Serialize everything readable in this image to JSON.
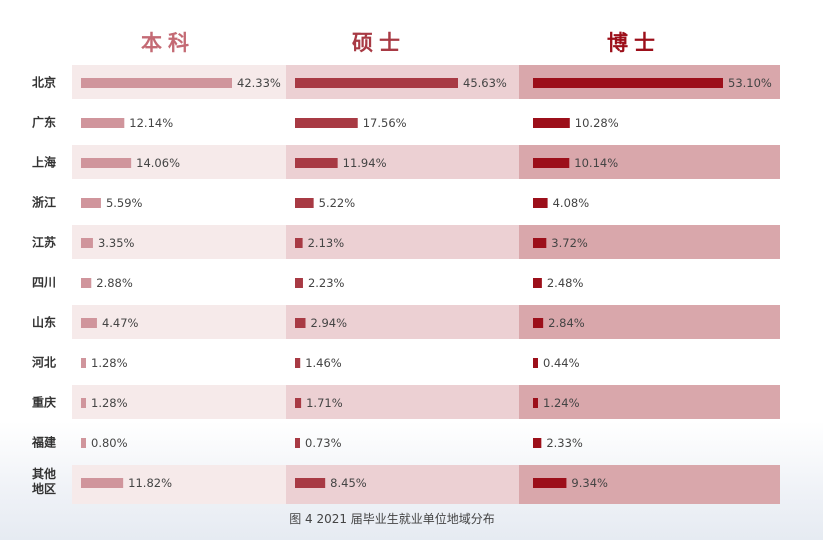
{
  "chart_data": {
    "type": "bar",
    "caption": "图 4   2021 届毕业生就业单位地域分布",
    "categories": [
      "北京",
      "广东",
      "上海",
      "浙江",
      "江苏",
      "四川",
      "山东",
      "河北",
      "重庆",
      "福建",
      "其他地区"
    ],
    "category_lines": [
      [
        "北京"
      ],
      [
        "广东"
      ],
      [
        "上海"
      ],
      [
        "浙江"
      ],
      [
        "江苏"
      ],
      [
        "四川"
      ],
      [
        "山东"
      ],
      [
        "河北"
      ],
      [
        "重庆"
      ],
      [
        "福建"
      ],
      [
        "其他",
        "地区"
      ]
    ],
    "series": [
      {
        "name": "本科",
        "color": "#d0959c",
        "values": [
          42.33,
          12.14,
          14.06,
          5.59,
          3.35,
          2.88,
          4.47,
          1.28,
          1.28,
          0.8,
          11.82
        ],
        "labels": [
          "42.33%",
          "12.14%",
          "14.06%",
          "5.59%",
          "3.35%",
          "2.88%",
          "4.47%",
          "1.28%",
          "1.28%",
          "0.80%",
          "11.82%"
        ]
      },
      {
        "name": "硕士",
        "color": "#a83a44",
        "values": [
          45.63,
          17.56,
          11.94,
          5.22,
          2.13,
          2.23,
          2.94,
          1.46,
          1.71,
          0.73,
          8.45
        ],
        "labels": [
          "45.63%",
          "17.56%",
          "11.94%",
          "5.22%",
          "2.13%",
          "2.23%",
          "2.94%",
          "1.46%",
          "1.71%",
          "0.73%",
          "8.45%"
        ]
      },
      {
        "name": "博士",
        "color": "#9c0f1a",
        "values": [
          53.1,
          10.28,
          10.14,
          4.08,
          3.72,
          2.48,
          2.84,
          0.44,
          1.24,
          2.33,
          9.34
        ],
        "labels": [
          "53.10%",
          "10.28%",
          "10.14%",
          "4.08%",
          "3.72%",
          "2.48%",
          "2.84%",
          "0.44%",
          "1.24%",
          "2.33%",
          "9.34%"
        ]
      }
    ],
    "header_colors": [
      "#c46a74",
      "#a83a44",
      "#9c0f1a"
    ],
    "band_colors": [
      "#f6eaea",
      "#ecd0d3",
      "#d9a7ab"
    ],
    "xlim": [
      0,
      55
    ]
  }
}
